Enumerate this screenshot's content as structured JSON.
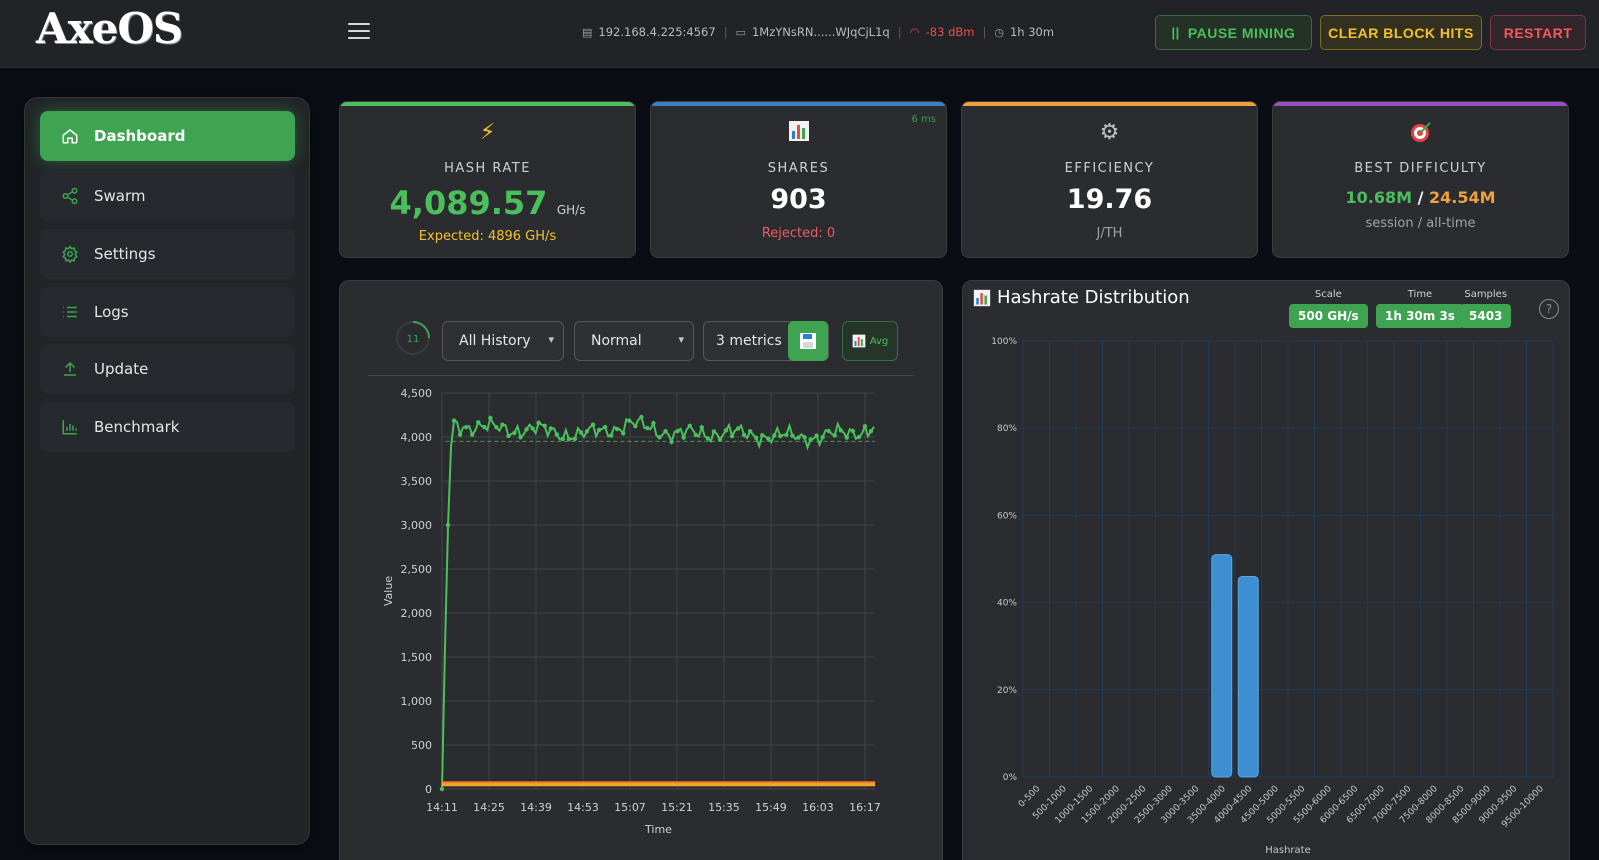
{
  "header": {
    "logo": "AxeOS",
    "ip": "192.168.4.225:4567",
    "wallet": "1MzYNsRN......WJqCjL1q",
    "signal": "-83 dBm",
    "uptime": "1h 30m",
    "pause_label": "PAUSE MINING",
    "clear_label": "CLEAR BLOCK HITS",
    "restart_label": "RESTART"
  },
  "sidebar": {
    "items": [
      {
        "label": "Dashboard",
        "icon": "home-icon",
        "active": true
      },
      {
        "label": "Swarm",
        "icon": "share-icon"
      },
      {
        "label": "Settings",
        "icon": "gear-icon"
      },
      {
        "label": "Logs",
        "icon": "list-icon"
      },
      {
        "label": "Update",
        "icon": "upload-icon"
      },
      {
        "label": "Benchmark",
        "icon": "bar-chart-icon"
      }
    ]
  },
  "cards": {
    "hashrate": {
      "title": "HASH RATE",
      "value": "4,089.57",
      "unit": "GH/s",
      "sub": "Expected: 4896 GH/s"
    },
    "shares": {
      "title": "SHARES",
      "value": "903",
      "sub": "Rejected: 0",
      "latency": "6 ms"
    },
    "efficiency": {
      "title": "EFFICIENCY",
      "value": "19.76",
      "sub": "J/TH"
    },
    "difficulty": {
      "title": "BEST DIFFICULTY",
      "session": "10.68M",
      "slash": "/",
      "alltime": "24.54M",
      "sub": "session / all-time"
    }
  },
  "colors": {
    "accent": "#3ea451",
    "hash_line": "#4cbf5d",
    "shares_line": "#3b82c4",
    "eff_line": "#f0a23a",
    "diff_line": "#9b4fc7",
    "bars": "#3d8fd1"
  },
  "chart_controls": {
    "refresh_count": "11",
    "range": "All History",
    "mode": "Normal",
    "metrics": "3 metrics",
    "avg_label": "Avg"
  },
  "chart_data": [
    {
      "type": "line",
      "xlabel": "Time",
      "ylabel": "Value",
      "ylim": [
        0,
        4500
      ],
      "yticks": [
        0,
        500,
        1000,
        1500,
        2000,
        2500,
        3000,
        3500,
        4000,
        4500
      ],
      "xticks": [
        "14:11",
        "14:25",
        "14:39",
        "14:53",
        "15:07",
        "15:21",
        "15:35",
        "15:49",
        "16:03",
        "16:17"
      ],
      "grid": true,
      "series": [
        {
          "x": [
            "14:11",
            "14:12",
            "14:13",
            "14:14",
            "14:25",
            "14:39",
            "14:53",
            "15:07",
            "15:21",
            "15:35",
            "15:49",
            "16:03",
            "16:17",
            "16:20"
          ],
          "values": [
            0,
            1800,
            3300,
            4150,
            4100,
            4080,
            4020,
            4150,
            4030,
            4050,
            4010,
            4000,
            4080,
            4100
          ]
        },
        {
          "x": [
            "14:11",
            "16:20"
          ],
          "values": [
            60,
            60
          ]
        },
        {
          "x": [
            "14:11",
            "16:20"
          ],
          "values": [
            50,
            50
          ]
        }
      ],
      "reference_line": 3950
    },
    {
      "type": "bar",
      "title": "Hashrate Distribution",
      "xlabel": "Hashrate",
      "categories": [
        "0-500",
        "500-1000",
        "1000-1500",
        "1500-2000",
        "2000-2500",
        "2500-3000",
        "3000-3500",
        "3500-4000",
        "4000-4500",
        "4500-5000",
        "5000-5500",
        "5500-6000",
        "6000-6500",
        "6500-7000",
        "7000-7500",
        "7500-8000",
        "8000-8500",
        "8500-9000",
        "9000-9500",
        "9500-10000"
      ],
      "values": [
        0,
        0,
        0,
        0,
        0,
        0,
        0,
        51,
        46,
        0,
        0,
        0,
        0,
        0,
        0,
        0,
        0,
        0,
        0,
        0
      ],
      "ylim": [
        0,
        100
      ],
      "yticks": [
        "0%",
        "20%",
        "40%",
        "60%",
        "80%",
        "100%"
      ],
      "grid": true
    }
  ],
  "distribution": {
    "title": "Hashrate Distribution",
    "scale_label": "Scale",
    "scale": "500 GH/s",
    "time_label": "Time",
    "time": "1h 30m 3s",
    "samples_label": "Samples",
    "samples": "5403"
  }
}
